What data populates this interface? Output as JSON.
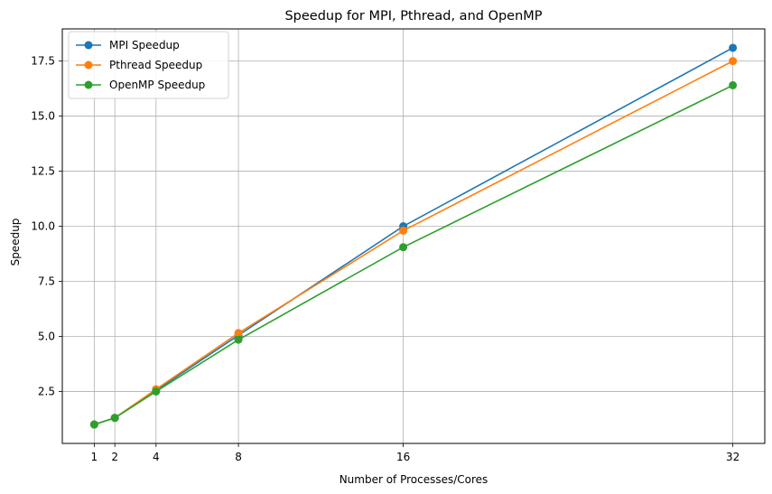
{
  "chart_data": {
    "type": "line",
    "title": "Speedup for MPI, Pthread, and OpenMP",
    "xlabel": "Number of Processes/Cores",
    "ylabel": "Speedup",
    "x": [
      1,
      2,
      4,
      8,
      16,
      32
    ],
    "x_ticks": [
      "1",
      "2",
      "4",
      "8",
      "16",
      "32"
    ],
    "y_ticks": [
      "2.5",
      "5.0",
      "7.5",
      "10.0",
      "12.5",
      "15.0",
      "17.5"
    ],
    "xlim": [
      -0.55,
      33.55
    ],
    "ylim": [
      0.14,
      18.96
    ],
    "grid": true,
    "legend_position": "top-left",
    "series": [
      {
        "name": "MPI Speedup",
        "color": "#1f77b4",
        "values": [
          1.0,
          1.3,
          2.55,
          5.05,
          10.0,
          18.1
        ]
      },
      {
        "name": "Pthread Speedup",
        "color": "#ff7f0e",
        "values": [
          1.0,
          1.3,
          2.6,
          5.15,
          9.8,
          17.5
        ]
      },
      {
        "name": "OpenMP Speedup",
        "color": "#2ca02c",
        "values": [
          1.0,
          1.3,
          2.5,
          4.85,
          9.05,
          16.4
        ]
      }
    ]
  }
}
